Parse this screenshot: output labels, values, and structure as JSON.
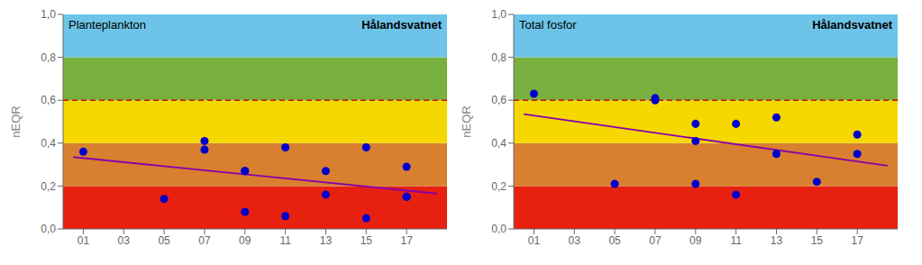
{
  "chart_data": [
    {
      "type": "scatter",
      "title": "Planteplankton",
      "annotations": [
        "Hålandsvatnet"
      ],
      "y_label": "nEQR",
      "xlim": [
        0,
        19
      ],
      "ylim": [
        0.0,
        1.0
      ],
      "xticks": [
        {
          "value": 1,
          "label": "01"
        },
        {
          "value": 3,
          "label": "03"
        },
        {
          "value": 5,
          "label": "05"
        },
        {
          "value": 7,
          "label": "07"
        },
        {
          "value": 9,
          "label": "09"
        },
        {
          "value": 11,
          "label": "11"
        },
        {
          "value": 13,
          "label": "13"
        },
        {
          "value": 15,
          "label": "15"
        },
        {
          "value": 17,
          "label": "17"
        }
      ],
      "yticks": [
        {
          "value": 0.0,
          "label": "0,0"
        },
        {
          "value": 0.2,
          "label": "0,2"
        },
        {
          "value": 0.4,
          "label": "0,4"
        },
        {
          "value": 0.6,
          "label": "0,6"
        },
        {
          "value": 0.8,
          "label": "0,8"
        },
        {
          "value": 1.0,
          "label": "1,0"
        }
      ],
      "grid": false,
      "bands": [
        {
          "from": 0.0,
          "to": 0.2,
          "color": "#e82010"
        },
        {
          "from": 0.2,
          "to": 0.4,
          "color": "#d88030"
        },
        {
          "from": 0.4,
          "to": 0.6,
          "color": "#f5d800"
        },
        {
          "from": 0.6,
          "to": 0.8,
          "color": "#78b040"
        },
        {
          "from": 0.8,
          "to": 1.0,
          "color": "#6ec4e8"
        }
      ],
      "reference_lines": [
        {
          "y": 0.6,
          "color": "#cc1100",
          "line_style": "dashed"
        }
      ],
      "series": [
        {
          "type": "scatter",
          "color": "#0000cc",
          "marker": "circle",
          "x": [
            1,
            5,
            7,
            7,
            9,
            9,
            9,
            11,
            11,
            13,
            13,
            15,
            15,
            17,
            17,
            17
          ],
          "values": [
            0.36,
            0.14,
            0.37,
            0.41,
            0.27,
            0.27,
            0.08,
            0.38,
            0.06,
            0.27,
            0.16,
            0.38,
            0.05,
            0.29,
            0.15,
            0.15
          ]
        },
        {
          "type": "line",
          "color": "#8800aa",
          "line_style": "solid",
          "x": [
            0.5,
            18.5
          ],
          "values": [
            0.335,
            0.165
          ]
        }
      ]
    },
    {
      "type": "scatter",
      "title": "Total fosfor",
      "annotations": [
        "Hålandsvatnet"
      ],
      "y_label": "nEQR",
      "xlim": [
        0,
        19
      ],
      "ylim": [
        0.0,
        1.0
      ],
      "xticks": [
        {
          "value": 1,
          "label": "01"
        },
        {
          "value": 3,
          "label": "03"
        },
        {
          "value": 5,
          "label": "05"
        },
        {
          "value": 7,
          "label": "07"
        },
        {
          "value": 9,
          "label": "09"
        },
        {
          "value": 11,
          "label": "11"
        },
        {
          "value": 13,
          "label": "13"
        },
        {
          "value": 15,
          "label": "15"
        },
        {
          "value": 17,
          "label": "17"
        }
      ],
      "yticks": [
        {
          "value": 0.0,
          "label": "0,0"
        },
        {
          "value": 0.2,
          "label": "0,2"
        },
        {
          "value": 0.4,
          "label": "0,4"
        },
        {
          "value": 0.6,
          "label": "0,6"
        },
        {
          "value": 0.8,
          "label": "0,8"
        },
        {
          "value": 1.0,
          "label": "1,0"
        }
      ],
      "grid": false,
      "bands": [
        {
          "from": 0.0,
          "to": 0.2,
          "color": "#e82010"
        },
        {
          "from": 0.2,
          "to": 0.4,
          "color": "#d88030"
        },
        {
          "from": 0.4,
          "to": 0.6,
          "color": "#f5d800"
        },
        {
          "from": 0.6,
          "to": 0.8,
          "color": "#78b040"
        },
        {
          "from": 0.8,
          "to": 1.0,
          "color": "#6ec4e8"
        }
      ],
      "reference_lines": [
        {
          "y": 0.6,
          "color": "#cc1100",
          "line_style": "dashed"
        }
      ],
      "series": [
        {
          "type": "scatter",
          "color": "#0000cc",
          "marker": "circle",
          "x": [
            1,
            5,
            7,
            7,
            9,
            9,
            9,
            11,
            11,
            13,
            13,
            15,
            17,
            17
          ],
          "values": [
            0.63,
            0.21,
            0.6,
            0.61,
            0.41,
            0.49,
            0.21,
            0.49,
            0.16,
            0.52,
            0.35,
            0.22,
            0.44,
            0.35
          ]
        },
        {
          "type": "line",
          "color": "#8800aa",
          "line_style": "solid",
          "x": [
            0.5,
            18.5
          ],
          "values": [
            0.535,
            0.295
          ]
        }
      ]
    }
  ]
}
